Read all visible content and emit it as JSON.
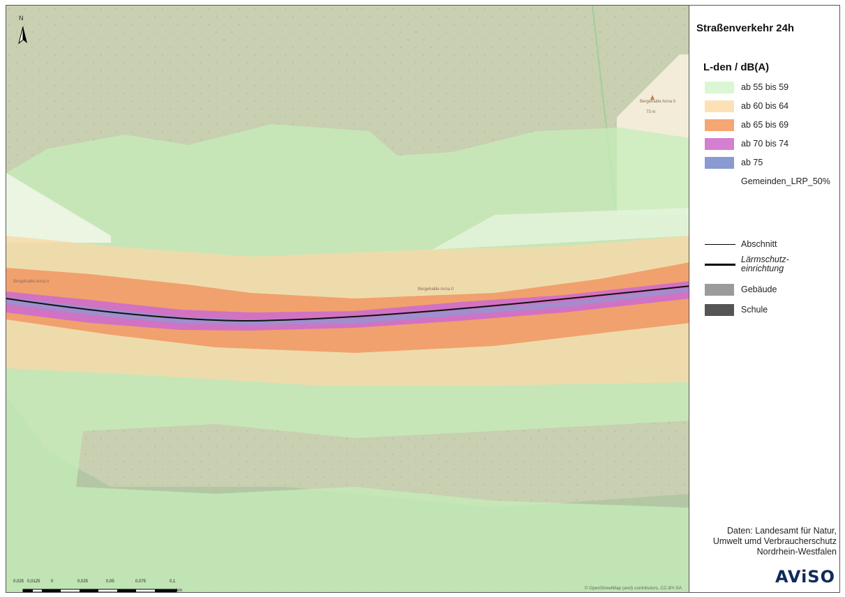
{
  "panel": {
    "title": "Straßenverkehr 24h",
    "legend_title": "L-den / dB(A)",
    "classes": [
      {
        "label": "ab 55 bis 59",
        "color": "#d9f7d2"
      },
      {
        "label": "ab 60 bis 64",
        "color": "#fbe1b5"
      },
      {
        "label": "ab 65 bis 69",
        "color": "#f5a673"
      },
      {
        "label": "ab 70 bis 74",
        "color": "#d47fcf"
      },
      {
        "label": "ab 75",
        "color": "#8a9ad1"
      }
    ],
    "gemeinden_label": "Gemeinden_LRP_50%",
    "lines": [
      {
        "label": "Abschnitt"
      },
      {
        "label": "Lärmschutz-",
        "label2": "einrichtung"
      }
    ],
    "buildings": [
      {
        "label": "Gebäude",
        "color": "#9b9b9b"
      },
      {
        "label": "Schule",
        "color": "#555555"
      }
    ],
    "source": {
      "line1": "Daten: Landesamt für Natur,",
      "line2": "Umwelt umd Verbraucherschutz",
      "line3": "Nordrhein-Westfalen"
    },
    "logo": "AViSO"
  },
  "map": {
    "north_label": "N",
    "scale_ticks": [
      "0,025",
      "0,0125",
      "0",
      "0,025",
      "0,05",
      "0,075",
      "0,1"
    ],
    "scale_unit": "km",
    "credit": "© OpenStreetMap (and) contributors, CC-BY-SA",
    "poi_label": "Bergehalde Anna II",
    "poi_height": "73 m",
    "road_labels": [
      "Bergehalde Anna II",
      "Bergehalde Anna II"
    ]
  }
}
